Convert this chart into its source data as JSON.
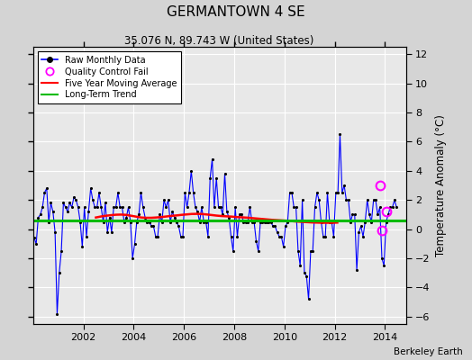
{
  "title": "GERMANTOWN 4 SE",
  "subtitle": "35.076 N, 89.743 W (United States)",
  "ylabel": "Temperature Anomaly (°C)",
  "credit": "Berkeley Earth",
  "ylim": [
    -6.5,
    12.5
  ],
  "yticks": [
    -6,
    -4,
    -2,
    0,
    2,
    4,
    6,
    8,
    10,
    12
  ],
  "xlim_start": 2000.0,
  "xlim_end": 2014.83,
  "xticks": [
    2002,
    2004,
    2006,
    2008,
    2010,
    2012,
    2014
  ],
  "fig_bg": "#d4d4d4",
  "plot_bg": "#e8e8e8",
  "raw_color": "#0000ff",
  "dot_color": "#000000",
  "ma_color": "#ff0000",
  "trend_color": "#00bb00",
  "qc_color": "#ff00ff",
  "raw_data": [
    [
      2000.042,
      -0.6
    ],
    [
      2000.125,
      -1.0
    ],
    [
      2000.208,
      0.8
    ],
    [
      2000.292,
      1.0
    ],
    [
      2000.375,
      1.5
    ],
    [
      2000.458,
      2.5
    ],
    [
      2000.542,
      2.8
    ],
    [
      2000.625,
      0.5
    ],
    [
      2000.708,
      1.8
    ],
    [
      2000.792,
      1.2
    ],
    [
      2000.875,
      -0.2
    ],
    [
      2000.958,
      -5.8
    ],
    [
      2001.042,
      -3.0
    ],
    [
      2001.125,
      -1.5
    ],
    [
      2001.208,
      1.8
    ],
    [
      2001.292,
      1.5
    ],
    [
      2001.375,
      1.2
    ],
    [
      2001.458,
      1.8
    ],
    [
      2001.542,
      1.5
    ],
    [
      2001.625,
      2.2
    ],
    [
      2001.708,
      2.0
    ],
    [
      2001.792,
      1.5
    ],
    [
      2001.875,
      0.5
    ],
    [
      2001.958,
      -1.2
    ],
    [
      2002.042,
      1.5
    ],
    [
      2002.125,
      -0.5
    ],
    [
      2002.208,
      1.2
    ],
    [
      2002.292,
      2.8
    ],
    [
      2002.375,
      2.0
    ],
    [
      2002.458,
      1.5
    ],
    [
      2002.542,
      1.5
    ],
    [
      2002.625,
      2.5
    ],
    [
      2002.708,
      1.5
    ],
    [
      2002.792,
      0.5
    ],
    [
      2002.875,
      1.8
    ],
    [
      2002.958,
      -0.2
    ],
    [
      2003.042,
      0.8
    ],
    [
      2003.125,
      -0.2
    ],
    [
      2003.208,
      1.5
    ],
    [
      2003.292,
      1.5
    ],
    [
      2003.375,
      2.5
    ],
    [
      2003.458,
      1.5
    ],
    [
      2003.542,
      1.5
    ],
    [
      2003.625,
      0.5
    ],
    [
      2003.708,
      0.8
    ],
    [
      2003.792,
      1.5
    ],
    [
      2003.875,
      0.5
    ],
    [
      2003.958,
      -2.0
    ],
    [
      2004.042,
      -1.0
    ],
    [
      2004.125,
      0.5
    ],
    [
      2004.208,
      1.0
    ],
    [
      2004.292,
      2.5
    ],
    [
      2004.375,
      1.5
    ],
    [
      2004.458,
      0.8
    ],
    [
      2004.542,
      0.5
    ],
    [
      2004.625,
      0.5
    ],
    [
      2004.708,
      0.2
    ],
    [
      2004.792,
      0.2
    ],
    [
      2004.875,
      -0.5
    ],
    [
      2004.958,
      -0.5
    ],
    [
      2005.042,
      1.0
    ],
    [
      2005.125,
      0.5
    ],
    [
      2005.208,
      2.0
    ],
    [
      2005.292,
      1.5
    ],
    [
      2005.375,
      2.0
    ],
    [
      2005.458,
      0.5
    ],
    [
      2005.542,
      1.2
    ],
    [
      2005.625,
      0.8
    ],
    [
      2005.708,
      0.5
    ],
    [
      2005.792,
      0.2
    ],
    [
      2005.875,
      -0.5
    ],
    [
      2005.958,
      -0.5
    ],
    [
      2006.042,
      2.5
    ],
    [
      2006.125,
      1.5
    ],
    [
      2006.208,
      2.5
    ],
    [
      2006.292,
      4.0
    ],
    [
      2006.375,
      2.5
    ],
    [
      2006.458,
      1.5
    ],
    [
      2006.542,
      1.2
    ],
    [
      2006.625,
      0.5
    ],
    [
      2006.708,
      1.5
    ],
    [
      2006.792,
      0.5
    ],
    [
      2006.875,
      0.5
    ],
    [
      2006.958,
      -0.5
    ],
    [
      2007.042,
      3.5
    ],
    [
      2007.125,
      4.8
    ],
    [
      2007.208,
      1.5
    ],
    [
      2007.292,
      3.5
    ],
    [
      2007.375,
      1.5
    ],
    [
      2007.458,
      1.5
    ],
    [
      2007.542,
      1.0
    ],
    [
      2007.625,
      3.8
    ],
    [
      2007.708,
      1.2
    ],
    [
      2007.792,
      0.8
    ],
    [
      2007.875,
      -0.5
    ],
    [
      2007.958,
      -1.5
    ],
    [
      2008.042,
      1.5
    ],
    [
      2008.125,
      -0.5
    ],
    [
      2008.208,
      1.0
    ],
    [
      2008.292,
      1.0
    ],
    [
      2008.375,
      0.5
    ],
    [
      2008.458,
      0.5
    ],
    [
      2008.542,
      0.5
    ],
    [
      2008.625,
      1.5
    ],
    [
      2008.708,
      0.5
    ],
    [
      2008.792,
      0.5
    ],
    [
      2008.875,
      -0.8
    ],
    [
      2008.958,
      -1.5
    ],
    [
      2009.042,
      0.5
    ],
    [
      2009.125,
      0.5
    ],
    [
      2009.208,
      0.5
    ],
    [
      2009.292,
      0.5
    ],
    [
      2009.375,
      0.5
    ],
    [
      2009.458,
      0.5
    ],
    [
      2009.542,
      0.2
    ],
    [
      2009.625,
      0.2
    ],
    [
      2009.708,
      -0.2
    ],
    [
      2009.792,
      -0.5
    ],
    [
      2009.875,
      -0.5
    ],
    [
      2009.958,
      -1.2
    ],
    [
      2010.042,
      0.2
    ],
    [
      2010.125,
      0.5
    ],
    [
      2010.208,
      2.5
    ],
    [
      2010.292,
      2.5
    ],
    [
      2010.375,
      1.5
    ],
    [
      2010.458,
      1.5
    ],
    [
      2010.542,
      -1.5
    ],
    [
      2010.625,
      -2.5
    ],
    [
      2010.708,
      2.0
    ],
    [
      2010.792,
      -3.0
    ],
    [
      2010.875,
      -3.2
    ],
    [
      2010.958,
      -4.8
    ],
    [
      2011.042,
      -1.5
    ],
    [
      2011.125,
      -1.5
    ],
    [
      2011.208,
      1.5
    ],
    [
      2011.292,
      2.5
    ],
    [
      2011.375,
      2.0
    ],
    [
      2011.458,
      0.5
    ],
    [
      2011.542,
      -0.5
    ],
    [
      2011.625,
      -0.5
    ],
    [
      2011.708,
      2.5
    ],
    [
      2011.792,
      0.5
    ],
    [
      2011.875,
      0.5
    ],
    [
      2011.958,
      -0.5
    ],
    [
      2012.042,
      2.5
    ],
    [
      2012.125,
      2.5
    ],
    [
      2012.208,
      6.5
    ],
    [
      2012.292,
      2.5
    ],
    [
      2012.375,
      3.0
    ],
    [
      2012.458,
      2.0
    ],
    [
      2012.542,
      2.0
    ],
    [
      2012.625,
      0.5
    ],
    [
      2012.708,
      1.0
    ],
    [
      2012.792,
      1.0
    ],
    [
      2012.875,
      -2.8
    ],
    [
      2012.958,
      -0.2
    ],
    [
      2013.042,
      0.2
    ],
    [
      2013.125,
      -0.5
    ],
    [
      2013.208,
      0.5
    ],
    [
      2013.292,
      2.0
    ],
    [
      2013.375,
      1.0
    ],
    [
      2013.458,
      0.5
    ],
    [
      2013.542,
      2.0
    ],
    [
      2013.625,
      2.0
    ],
    [
      2013.708,
      1.0
    ],
    [
      2013.792,
      1.5
    ],
    [
      2013.875,
      -2.0
    ],
    [
      2013.958,
      -2.5
    ],
    [
      2014.042,
      0.5
    ],
    [
      2014.125,
      1.0
    ],
    [
      2014.208,
      1.5
    ],
    [
      2014.292,
      1.5
    ],
    [
      2014.375,
      2.0
    ],
    [
      2014.458,
      1.5
    ]
  ],
  "ma_data": [
    [
      2002.5,
      0.8
    ],
    [
      2002.7,
      0.87
    ],
    [
      2002.9,
      0.92
    ],
    [
      2003.1,
      0.96
    ],
    [
      2003.3,
      0.99
    ],
    [
      2003.5,
      1.0
    ],
    [
      2003.7,
      0.98
    ],
    [
      2003.9,
      0.92
    ],
    [
      2004.1,
      0.86
    ],
    [
      2004.3,
      0.8
    ],
    [
      2004.5,
      0.78
    ],
    [
      2004.7,
      0.78
    ],
    [
      2004.9,
      0.8
    ],
    [
      2005.1,
      0.83
    ],
    [
      2005.3,
      0.87
    ],
    [
      2005.5,
      0.91
    ],
    [
      2005.7,
      0.94
    ],
    [
      2005.9,
      0.98
    ],
    [
      2006.1,
      1.01
    ],
    [
      2006.3,
      1.04
    ],
    [
      2006.5,
      1.05
    ],
    [
      2006.7,
      1.04
    ],
    [
      2006.9,
      1.01
    ],
    [
      2007.1,
      0.97
    ],
    [
      2007.3,
      0.93
    ],
    [
      2007.5,
      0.9
    ],
    [
      2007.7,
      0.88
    ],
    [
      2007.9,
      0.86
    ],
    [
      2008.1,
      0.83
    ],
    [
      2008.3,
      0.81
    ],
    [
      2008.5,
      0.79
    ],
    [
      2008.7,
      0.76
    ],
    [
      2008.9,
      0.73
    ],
    [
      2009.1,
      0.7
    ],
    [
      2009.3,
      0.67
    ],
    [
      2009.5,
      0.64
    ],
    [
      2009.7,
      0.62
    ],
    [
      2009.9,
      0.6
    ],
    [
      2010.1,
      0.58
    ],
    [
      2010.3,
      0.55
    ],
    [
      2010.5,
      0.52
    ],
    [
      2010.7,
      0.5
    ],
    [
      2010.9,
      0.48
    ],
    [
      2011.1,
      0.46
    ],
    [
      2011.3,
      0.45
    ],
    [
      2011.5,
      0.44
    ],
    [
      2011.7,
      0.44
    ],
    [
      2011.9,
      0.44
    ],
    [
      2012.1,
      0.45
    ]
  ],
  "trend_x": [
    2000.0,
    2014.83
  ],
  "trend_y": [
    0.62,
    0.62
  ],
  "qc_points": [
    [
      2013.792,
      3.0
    ],
    [
      2014.042,
      1.2
    ],
    [
      2013.875,
      -0.1
    ]
  ]
}
